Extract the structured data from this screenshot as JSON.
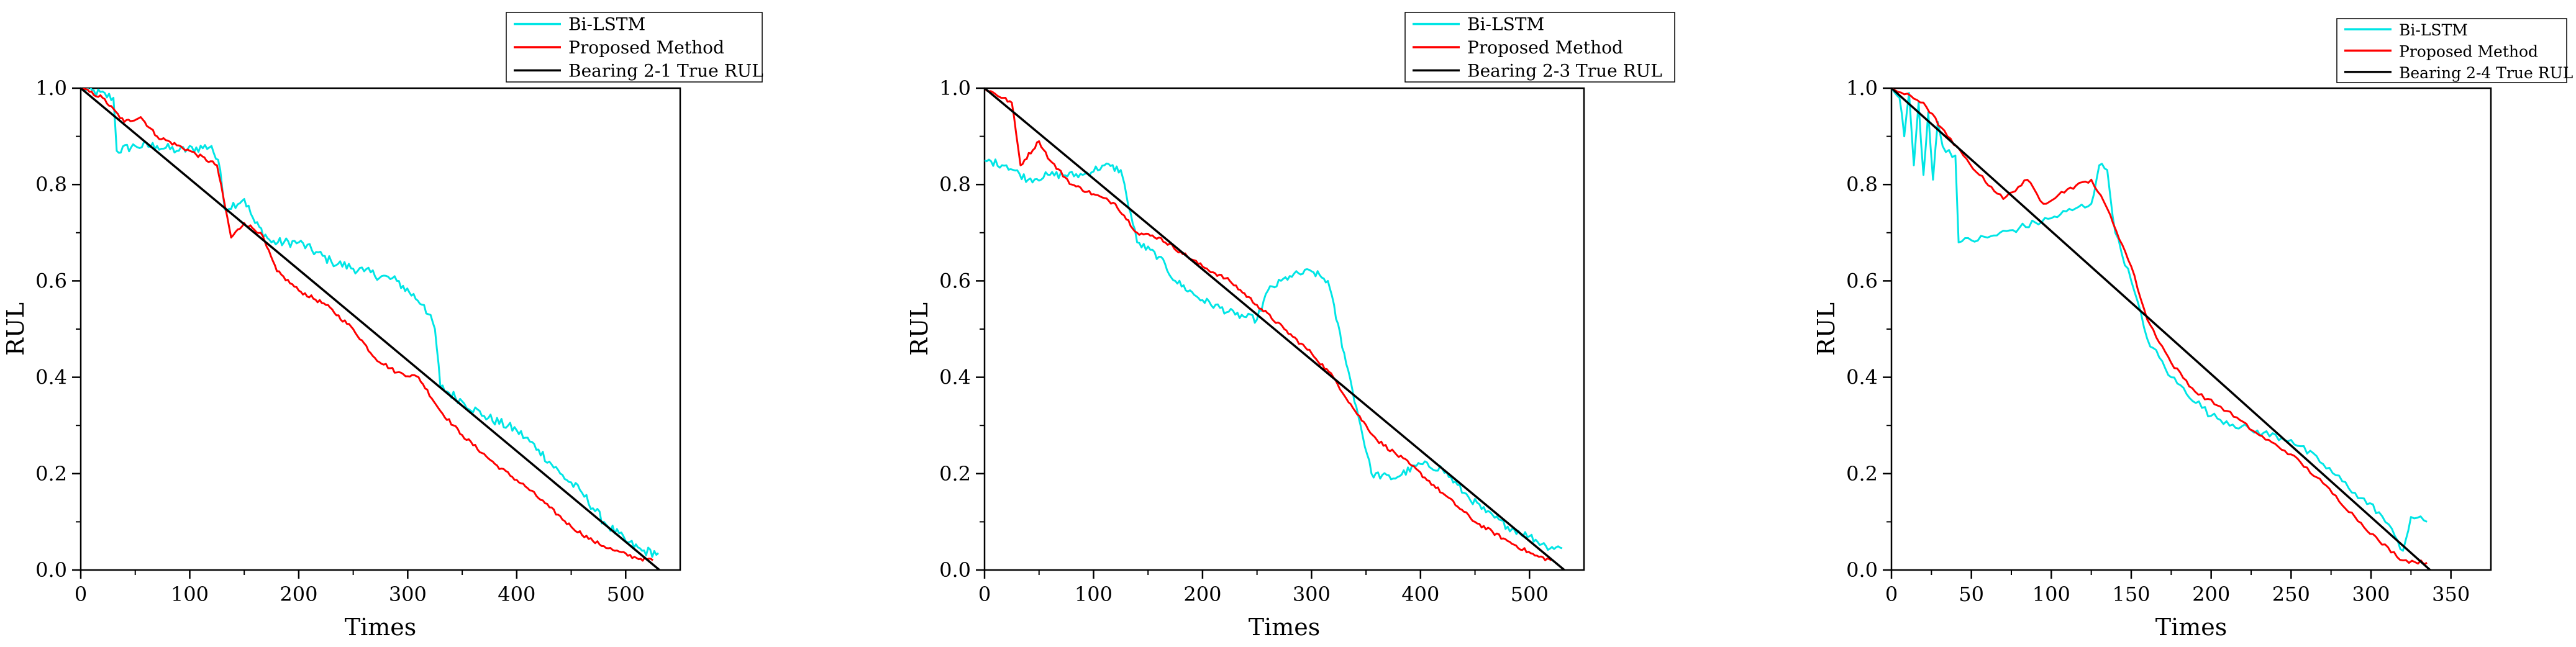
{
  "chart_data": [
    {
      "type": "line",
      "xlabel": "Times",
      "ylabel": "RUL",
      "xlim": [
        0,
        550
      ],
      "ylim": [
        0,
        1.0
      ],
      "xticks": [
        0,
        100,
        200,
        300,
        400,
        500
      ],
      "xtick_labels": [
        "0",
        "100",
        "200",
        "300",
        "400",
        "500"
      ],
      "yticks": [
        0,
        0.2,
        0.4,
        0.6,
        0.8,
        1.0
      ],
      "ytick_labels": [
        "0.0",
        "0.2",
        "0.4",
        "0.6",
        "0.8",
        "1.0"
      ],
      "legend_position": "top-right, above plot",
      "series": [
        {
          "name": "Bi-LSTM",
          "color": "#00e5e5",
          "noise": 0.01,
          "points": [
            [
              0,
              1.0
            ],
            [
              30,
              0.98
            ],
            [
              33,
              0.87
            ],
            [
              50,
              0.88
            ],
            [
              70,
              0.88
            ],
            [
              90,
              0.87
            ],
            [
              120,
              0.88
            ],
            [
              128,
              0.83
            ],
            [
              132,
              0.75
            ],
            [
              150,
              0.77
            ],
            [
              160,
              0.72
            ],
            [
              175,
              0.68
            ],
            [
              200,
              0.68
            ],
            [
              230,
              0.64
            ],
            [
              260,
              0.62
            ],
            [
              290,
              0.6
            ],
            [
              315,
              0.55
            ],
            [
              325,
              0.5
            ],
            [
              330,
              0.38
            ],
            [
              350,
              0.35
            ],
            [
              370,
              0.32
            ],
            [
              400,
              0.29
            ],
            [
              420,
              0.25
            ],
            [
              440,
              0.2
            ],
            [
              460,
              0.16
            ],
            [
              480,
              0.1
            ],
            [
              500,
              0.06
            ],
            [
              515,
              0.04
            ],
            [
              530,
              0.035
            ]
          ]
        },
        {
          "name": "Proposed Method",
          "color": "#ff0000",
          "noise": 0.004,
          "points": [
            [
              0,
              1.0
            ],
            [
              20,
              0.98
            ],
            [
              40,
              0.93
            ],
            [
              55,
              0.94
            ],
            [
              70,
              0.9
            ],
            [
              100,
              0.87
            ],
            [
              125,
              0.84
            ],
            [
              138,
              0.69
            ],
            [
              150,
              0.72
            ],
            [
              165,
              0.7
            ],
            [
              180,
              0.62
            ],
            [
              200,
              0.58
            ],
            [
              225,
              0.55
            ],
            [
              250,
              0.5
            ],
            [
              270,
              0.44
            ],
            [
              290,
              0.41
            ],
            [
              310,
              0.4
            ],
            [
              330,
              0.33
            ],
            [
              350,
              0.28
            ],
            [
              380,
              0.22
            ],
            [
              410,
              0.17
            ],
            [
              430,
              0.13
            ],
            [
              450,
              0.09
            ],
            [
              470,
              0.06
            ],
            [
              490,
              0.04
            ],
            [
              510,
              0.025
            ],
            [
              525,
              0.02
            ]
          ]
        },
        {
          "name": "Bearing 2-1 True RUL",
          "color": "#000000",
          "noise": 0,
          "points": [
            [
              0,
              1.0
            ],
            [
              531,
              0.0
            ]
          ]
        }
      ]
    },
    {
      "type": "line",
      "xlabel": "Times",
      "ylabel": "RUL",
      "xlim": [
        0,
        550
      ],
      "ylim": [
        0,
        1.0
      ],
      "xticks": [
        0,
        100,
        200,
        300,
        400,
        500
      ],
      "xtick_labels": [
        "0",
        "100",
        "200",
        "300",
        "400",
        "500"
      ],
      "yticks": [
        0,
        0.2,
        0.4,
        0.6,
        0.8,
        1.0
      ],
      "ytick_labels": [
        "0.0",
        "0.2",
        "0.4",
        "0.6",
        "0.8",
        "1.0"
      ],
      "legend_position": "top-right, above plot",
      "series": [
        {
          "name": "Bi-LSTM",
          "color": "#00e5e5",
          "noise": 0.008,
          "points": [
            [
              0,
              0.85
            ],
            [
              20,
              0.84
            ],
            [
              40,
              0.81
            ],
            [
              60,
              0.82
            ],
            [
              90,
              0.82
            ],
            [
              110,
              0.84
            ],
            [
              125,
              0.83
            ],
            [
              130,
              0.78
            ],
            [
              140,
              0.68
            ],
            [
              160,
              0.65
            ],
            [
              175,
              0.6
            ],
            [
              200,
              0.56
            ],
            [
              230,
              0.53
            ],
            [
              250,
              0.52
            ],
            [
              260,
              0.58
            ],
            [
              280,
              0.61
            ],
            [
              300,
              0.62
            ],
            [
              315,
              0.6
            ],
            [
              330,
              0.45
            ],
            [
              345,
              0.3
            ],
            [
              355,
              0.2
            ],
            [
              375,
              0.19
            ],
            [
              400,
              0.22
            ],
            [
              420,
              0.21
            ],
            [
              440,
              0.16
            ],
            [
              460,
              0.12
            ],
            [
              480,
              0.09
            ],
            [
              500,
              0.07
            ],
            [
              515,
              0.05
            ],
            [
              530,
              0.045
            ]
          ]
        },
        {
          "name": "Proposed Method",
          "color": "#ff0000",
          "noise": 0.004,
          "points": [
            [
              0,
              1.0
            ],
            [
              25,
              0.97
            ],
            [
              33,
              0.84
            ],
            [
              50,
              0.89
            ],
            [
              60,
              0.85
            ],
            [
              80,
              0.8
            ],
            [
              100,
              0.78
            ],
            [
              120,
              0.76
            ],
            [
              140,
              0.7
            ],
            [
              160,
              0.69
            ],
            [
              180,
              0.66
            ],
            [
              200,
              0.63
            ],
            [
              225,
              0.6
            ],
            [
              250,
              0.55
            ],
            [
              275,
              0.5
            ],
            [
              300,
              0.45
            ],
            [
              320,
              0.4
            ],
            [
              340,
              0.33
            ],
            [
              360,
              0.27
            ],
            [
              390,
              0.22
            ],
            [
              420,
              0.16
            ],
            [
              450,
              0.1
            ],
            [
              480,
              0.06
            ],
            [
              505,
              0.03
            ],
            [
              520,
              0.02
            ]
          ]
        },
        {
          "name": "Bearing 2-3 True RUL",
          "color": "#000000",
          "noise": 0,
          "points": [
            [
              0,
              1.0
            ],
            [
              532,
              0.0
            ]
          ]
        }
      ]
    },
    {
      "type": "line",
      "xlabel": "Times",
      "ylabel": "RUL",
      "xlim": [
        0,
        375
      ],
      "ylim": [
        0,
        1.0
      ],
      "xticks": [
        0,
        50,
        100,
        150,
        200,
        250,
        300,
        350
      ],
      "xtick_labels": [
        "0",
        "50",
        "100",
        "150",
        "200",
        "250",
        "300",
        "350"
      ],
      "yticks": [
        0,
        0.2,
        0.4,
        0.6,
        0.8,
        1.0
      ],
      "ytick_labels": [
        "0.0",
        "0.2",
        "0.4",
        "0.6",
        "0.8",
        "1.0"
      ],
      "legend_position": "top-right, above plot",
      "series": [
        {
          "name": "Bi-LSTM",
          "color": "#00e5e5",
          "noise": 0.008,
          "points": [
            [
              0,
              1.0
            ],
            [
              5,
              0.98
            ],
            [
              8,
              0.9
            ],
            [
              11,
              0.99
            ],
            [
              14,
              0.84
            ],
            [
              17,
              0.97
            ],
            [
              20,
              0.82
            ],
            [
              23,
              0.95
            ],
            [
              26,
              0.81
            ],
            [
              29,
              0.93
            ],
            [
              32,
              0.88
            ],
            [
              40,
              0.86
            ],
            [
              42,
              0.68
            ],
            [
              60,
              0.69
            ],
            [
              80,
              0.71
            ],
            [
              100,
              0.73
            ],
            [
              115,
              0.75
            ],
            [
              125,
              0.76
            ],
            [
              130,
              0.84
            ],
            [
              135,
              0.83
            ],
            [
              140,
              0.7
            ],
            [
              150,
              0.6
            ],
            [
              160,
              0.48
            ],
            [
              175,
              0.4
            ],
            [
              200,
              0.32
            ],
            [
              225,
              0.29
            ],
            [
              250,
              0.27
            ],
            [
              270,
              0.22
            ],
            [
              290,
              0.16
            ],
            [
              305,
              0.12
            ],
            [
              315,
              0.07
            ],
            [
              320,
              0.04
            ],
            [
              325,
              0.11
            ],
            [
              335,
              0.1
            ]
          ]
        },
        {
          "name": "Proposed Method",
          "color": "#ff0000",
          "noise": 0.004,
          "points": [
            [
              0,
              1.0
            ],
            [
              20,
              0.97
            ],
            [
              35,
              0.9
            ],
            [
              45,
              0.86
            ],
            [
              55,
              0.82
            ],
            [
              70,
              0.77
            ],
            [
              85,
              0.81
            ],
            [
              95,
              0.76
            ],
            [
              110,
              0.79
            ],
            [
              125,
              0.81
            ],
            [
              135,
              0.75
            ],
            [
              150,
              0.63
            ],
            [
              160,
              0.52
            ],
            [
              175,
              0.43
            ],
            [
              190,
              0.37
            ],
            [
              210,
              0.33
            ],
            [
              230,
              0.28
            ],
            [
              250,
              0.24
            ],
            [
              270,
              0.18
            ],
            [
              290,
              0.11
            ],
            [
              305,
              0.06
            ],
            [
              320,
              0.02
            ],
            [
              335,
              0.015
            ]
          ]
        },
        {
          "name": "Bearing 2-4 True RUL",
          "color": "#000000",
          "noise": 0,
          "points": [
            [
              0,
              1.0
            ],
            [
              337,
              0.0
            ]
          ]
        }
      ]
    }
  ]
}
